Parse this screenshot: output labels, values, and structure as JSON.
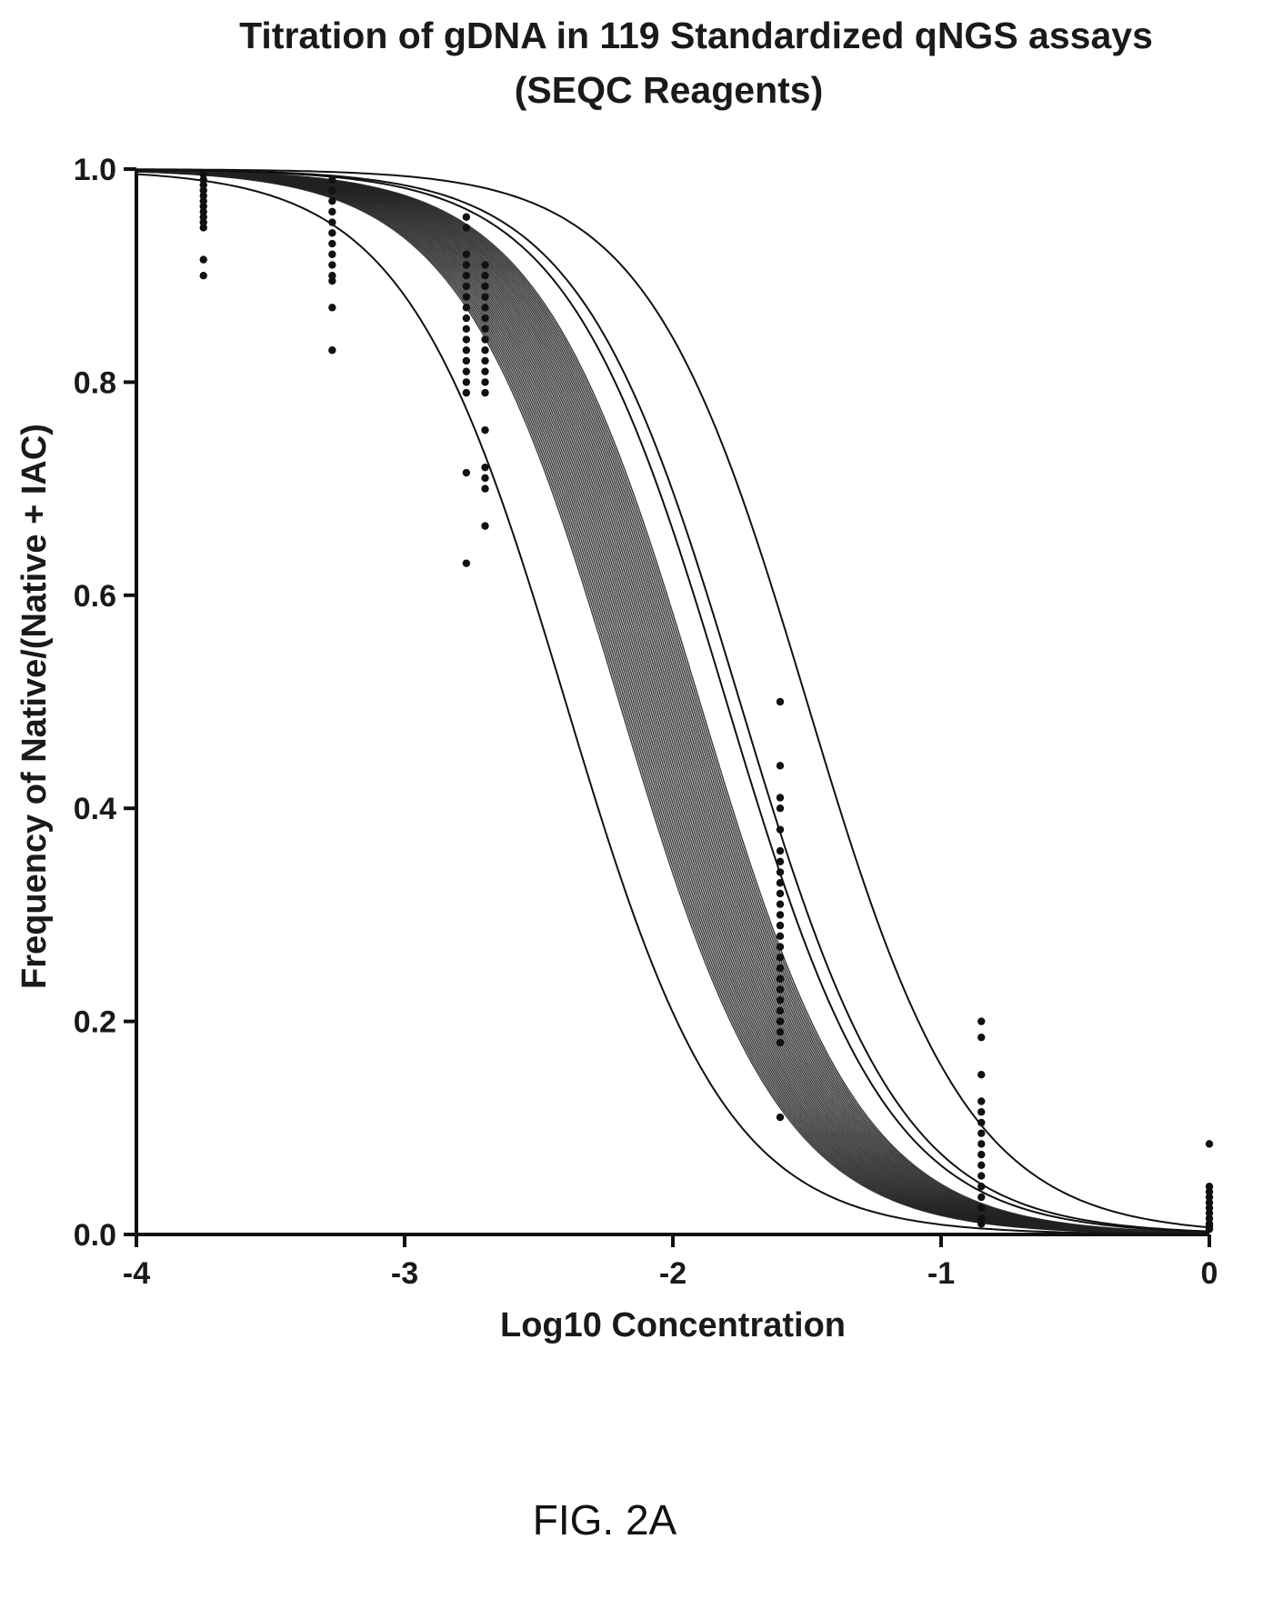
{
  "chart_data": {
    "type": "scatter",
    "title": "Titration of gDNA in 119 Standardized qNGS assays",
    "subtitle": "(SEQC Reagents)",
    "xlabel": "Log10 Concentration",
    "ylabel": "Frequency of Native/(Native + IAC)",
    "xlim": [
      -4,
      0
    ],
    "ylim": [
      0,
      1
    ],
    "xticks": [
      -4,
      -3,
      -2,
      -1,
      0
    ],
    "xtick_labels": [
      "-4",
      "-3",
      "-2",
      "-1",
      "0"
    ],
    "yticks": [
      0,
      0.2,
      0.4,
      0.6,
      0.8,
      1.0
    ],
    "ytick_labels": [
      "0.0",
      "0.2",
      "0.4",
      "0.6",
      "0.8",
      "1.0"
    ],
    "grid": false,
    "legend": "none",
    "curves": {
      "model": "y = 1 / (1 + 10^(slope * (x - x50)))",
      "slope": 1.45,
      "dense_x50_range": [
        -2.2,
        -1.9
      ],
      "outlier_x50": [
        -2.4,
        -1.5,
        -1.75,
        -1.8
      ]
    },
    "points": [
      {
        "x": -3.75,
        "values": [
          0.995,
          0.99,
          0.985,
          0.98,
          0.975,
          0.97,
          0.965,
          0.96,
          0.955,
          0.95,
          0.945,
          0.915,
          0.9
        ]
      },
      {
        "x": -3.27,
        "values": [
          0.99,
          0.98,
          0.97,
          0.96,
          0.95,
          0.94,
          0.93,
          0.92,
          0.91,
          0.9,
          0.895,
          0.87,
          0.83
        ]
      },
      {
        "x": -2.77,
        "values": [
          0.955,
          0.945,
          0.92,
          0.91,
          0.9,
          0.89,
          0.88,
          0.87,
          0.86,
          0.85,
          0.84,
          0.83,
          0.82,
          0.81,
          0.8,
          0.79,
          0.715,
          0.63
        ]
      },
      {
        "x": -2.7,
        "values": [
          0.91,
          0.9,
          0.89,
          0.88,
          0.87,
          0.86,
          0.85,
          0.84,
          0.83,
          0.82,
          0.81,
          0.8,
          0.79,
          0.755,
          0.72,
          0.71,
          0.7,
          0.665
        ]
      },
      {
        "x": -1.6,
        "values": [
          0.5,
          0.44,
          0.41,
          0.4,
          0.38,
          0.36,
          0.35,
          0.34,
          0.33,
          0.32,
          0.31,
          0.3,
          0.29,
          0.28,
          0.27,
          0.26,
          0.25,
          0.24,
          0.23,
          0.22,
          0.21,
          0.2,
          0.19,
          0.18,
          0.11
        ]
      },
      {
        "x": -0.85,
        "values": [
          0.2,
          0.185,
          0.15,
          0.125,
          0.115,
          0.105,
          0.095,
          0.085,
          0.075,
          0.065,
          0.055,
          0.045,
          0.035,
          0.025,
          0.015,
          0.01
        ]
      },
      {
        "x": 0.0,
        "values": [
          0.085,
          0.045,
          0.04,
          0.035,
          0.03,
          0.025,
          0.02,
          0.015,
          0.01,
          0.008,
          0.005
        ]
      }
    ]
  },
  "caption": "FIG. 2A"
}
